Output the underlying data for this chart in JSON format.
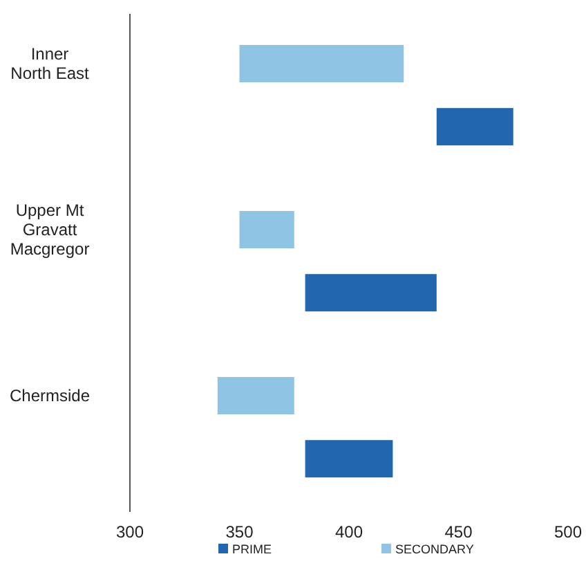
{
  "chart_data": {
    "type": "bar",
    "orientation": "horizontal",
    "categories": [
      "Inner North East",
      "Upper Mt Gravatt Macgregor",
      "Chermside"
    ],
    "series": [
      {
        "name": "PRIME",
        "color": "#2266ad",
        "base": [
          440,
          380,
          380
        ],
        "values": [
          35,
          60,
          40
        ]
      },
      {
        "name": "SECONDARY",
        "color": "#8fc4e4",
        "base": [
          350,
          350,
          340
        ],
        "values": [
          75,
          25,
          35
        ]
      }
    ],
    "xlim": [
      300,
      500
    ],
    "xticks": [
      300,
      350,
      400,
      450,
      500
    ],
    "grid": false,
    "legend": "bottom"
  }
}
